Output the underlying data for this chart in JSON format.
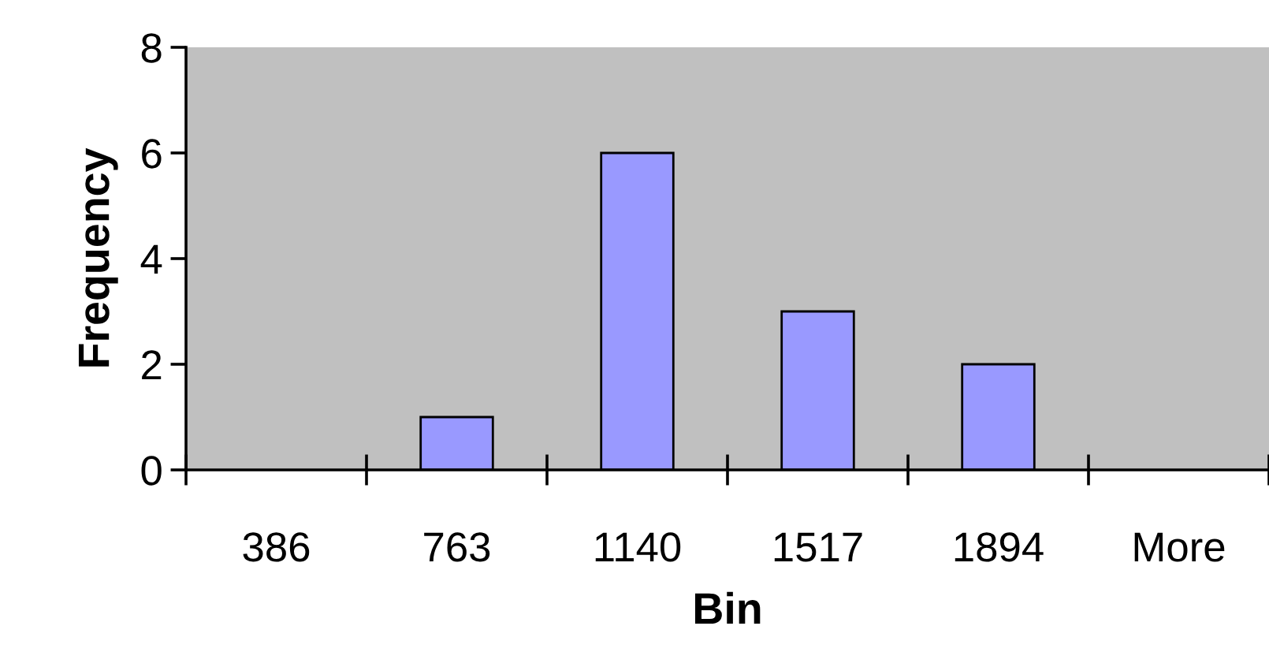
{
  "chart_data": {
    "type": "bar",
    "categories": [
      "386",
      "763",
      "1140",
      "1517",
      "1894",
      "More"
    ],
    "values": [
      0,
      1,
      6,
      3,
      2,
      0
    ],
    "color": "#9999ff",
    "xlabel": "Bin",
    "ylabel": "Frequency",
    "ylim": [
      0,
      8
    ],
    "yticks": [
      0,
      2,
      4,
      6,
      8
    ],
    "grid": false,
    "legend": false
  }
}
